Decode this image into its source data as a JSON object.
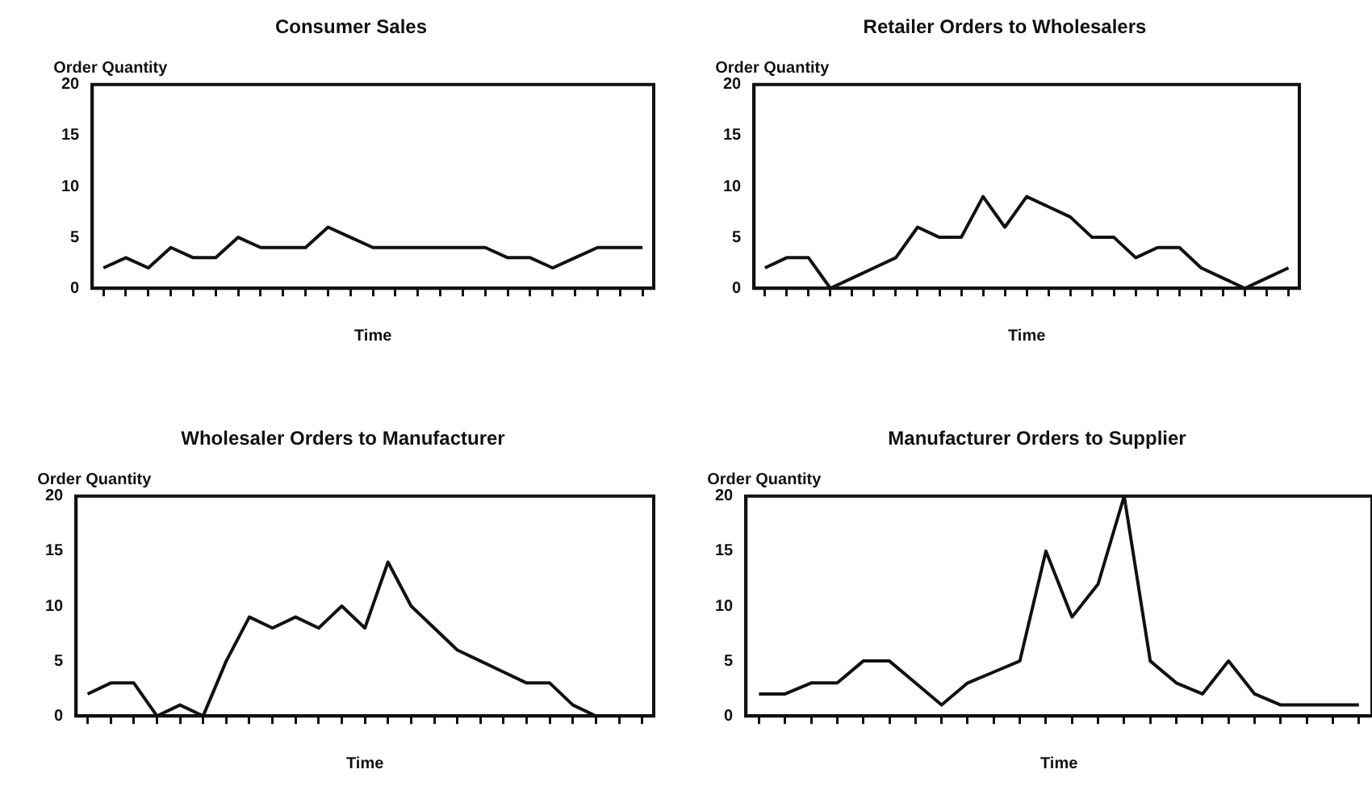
{
  "chart_data": [
    {
      "type": "line",
      "title": "Consumer Sales",
      "xlabel": "Time",
      "ylabel": "Order Quantity",
      "categories": [
        null,
        null,
        null,
        null,
        null,
        null,
        null,
        null,
        null,
        null,
        null,
        null,
        null,
        null,
        null,
        null,
        null,
        null,
        null,
        null,
        null,
        null,
        null,
        null,
        null
      ],
      "series": [
        {
          "color": "#111111",
          "values": [
            2,
            3,
            2,
            4,
            3,
            3,
            5,
            4,
            4,
            4,
            6,
            5,
            4,
            4,
            4,
            4,
            4,
            4,
            3,
            3,
            2,
            3,
            4,
            4,
            4
          ]
        }
      ],
      "ylim": [
        0,
        20
      ],
      "yticks": [
        0,
        5,
        10,
        15,
        20
      ],
      "grid": false,
      "marker": "none",
      "line_style": "solid"
    },
    {
      "type": "line",
      "title": "Retailer Orders to Wholesalers",
      "xlabel": "Time",
      "ylabel": "Order Quantity",
      "categories": [
        null,
        null,
        null,
        null,
        null,
        null,
        null,
        null,
        null,
        null,
        null,
        null,
        null,
        null,
        null,
        null,
        null,
        null,
        null,
        null,
        null,
        null,
        null,
        null,
        null
      ],
      "series": [
        {
          "color": "#111111",
          "values": [
            2,
            3,
            3,
            0,
            1,
            2,
            3,
            6,
            5,
            5,
            9,
            6,
            9,
            8,
            7,
            5,
            5,
            3,
            4,
            4,
            2,
            1,
            0,
            1,
            2
          ]
        }
      ],
      "ylim": [
        0,
        20
      ],
      "yticks": [
        0,
        5,
        10,
        15,
        20
      ],
      "grid": false,
      "marker": "none",
      "line_style": "solid"
    },
    {
      "type": "line",
      "title": "Wholesaler Orders to Manufacturer",
      "xlabel": "Time",
      "ylabel": "Order Quantity",
      "categories": [
        null,
        null,
        null,
        null,
        null,
        null,
        null,
        null,
        null,
        null,
        null,
        null,
        null,
        null,
        null,
        null,
        null,
        null,
        null,
        null,
        null,
        null,
        null,
        null,
        null
      ],
      "series": [
        {
          "color": "#111111",
          "values": [
            2,
            3,
            3,
            0,
            1,
            0,
            5,
            9,
            8,
            9,
            8,
            10,
            8,
            14,
            10,
            8,
            6,
            5,
            4,
            3,
            3,
            1,
            0,
            null,
            null
          ]
        }
      ],
      "ylim": [
        0,
        20
      ],
      "yticks": [
        0,
        5,
        10,
        15,
        20
      ],
      "grid": false,
      "marker": "none",
      "line_style": "solid"
    },
    {
      "type": "line",
      "title": "Manufacturer Orders to Supplier",
      "xlabel": "Time",
      "ylabel": "Order Quantity",
      "categories": [
        null,
        null,
        null,
        null,
        null,
        null,
        null,
        null,
        null,
        null,
        null,
        null,
        null,
        null,
        null,
        null,
        null,
        null,
        null,
        null,
        null,
        null,
        null,
        null
      ],
      "series": [
        {
          "color": "#111111",
          "values": [
            2,
            2,
            3,
            3,
            5,
            5,
            3,
            1,
            3,
            4,
            5,
            15,
            9,
            12,
            20,
            5,
            3,
            2,
            5,
            2,
            1,
            1,
            1,
            1
          ]
        }
      ],
      "ylim": [
        0,
        20
      ],
      "yticks": [
        0,
        5,
        10,
        15,
        20
      ],
      "grid": false,
      "marker": "none",
      "line_style": "solid"
    }
  ]
}
